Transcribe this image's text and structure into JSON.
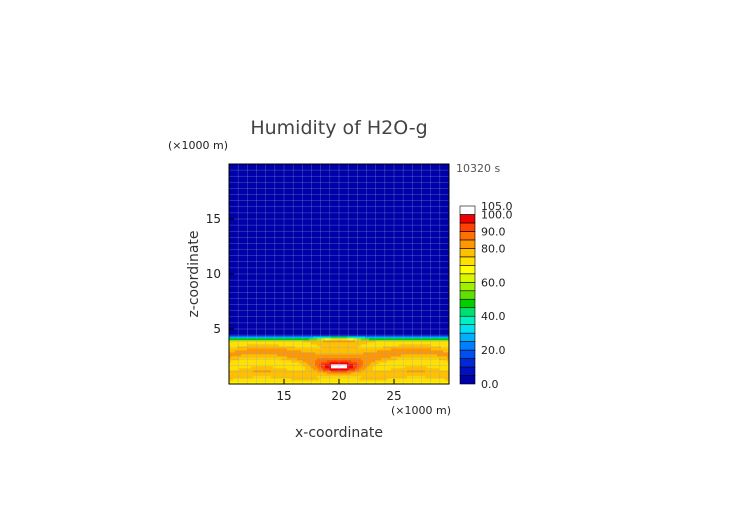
{
  "chart_data": {
    "type": "heatmap",
    "title": "Humidity of H2O-g",
    "time_label": "10320 s",
    "xlabel": "x-coordinate",
    "ylabel": "z-coordinate",
    "x_unit": "(×1000 m)",
    "z_unit": "(×1000 m)",
    "xlim": [
      10,
      30
    ],
    "ylim": [
      0,
      20
    ],
    "x_ticks": [
      15,
      20,
      25
    ],
    "y_ticks": [
      5,
      10,
      15
    ],
    "grid": true,
    "colorbar": {
      "placement": "right",
      "levels": [
        0,
        5,
        10,
        15,
        20,
        25,
        30,
        35,
        40,
        45,
        50,
        55,
        60,
        65,
        70,
        75,
        80,
        85,
        90,
        95,
        100,
        105
      ],
      "tick_labels": [
        "0.0",
        "20.0",
        "40.0",
        "60.0",
        "80.0",
        "90.0",
        "100.0",
        "105.0"
      ],
      "tick_values": [
        0,
        20,
        40,
        60,
        80,
        90,
        100,
        105
      ],
      "colors": [
        "#0000a8",
        "#0010c0",
        "#0028d8",
        "#0050f0",
        "#0080ff",
        "#00b0ff",
        "#00e0f0",
        "#00f0c0",
        "#00e070",
        "#00d000",
        "#60e000",
        "#a0f000",
        "#d8f800",
        "#ffff00",
        "#ffe000",
        "#ffc000",
        "#ff9800",
        "#ff7000",
        "#ff4000",
        "#f00000",
        "#ffffff"
      ]
    },
    "fields": {
      "moist_layer_top_km": 4,
      "background_upper_value": 2,
      "surface_value": 80,
      "core": {
        "x": 20,
        "z": 1.5,
        "peak_value": 100
      }
    }
  }
}
